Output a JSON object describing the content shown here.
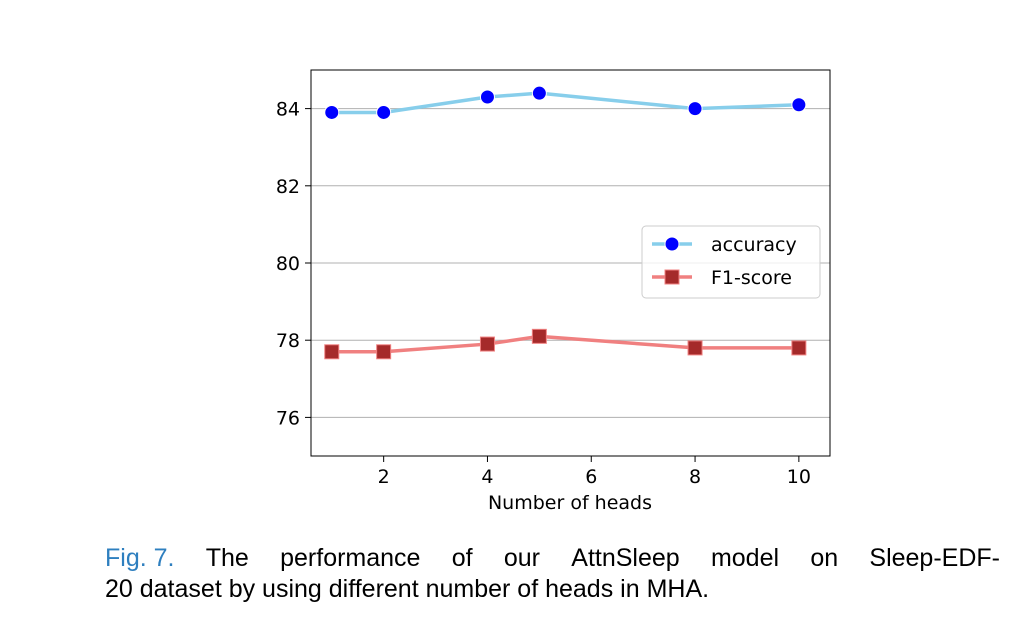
{
  "chart_data": {
    "type": "line",
    "title": "",
    "xlabel": "Number of heads",
    "ylabel": "",
    "xlim": [
      0.6,
      10.6
    ],
    "ylim": [
      75.0,
      85.0
    ],
    "xticks": [
      2,
      4,
      6,
      8,
      10
    ],
    "yticks": [
      76,
      78,
      80,
      82,
      84
    ],
    "grid": "horizontal",
    "legend_position": "center-right",
    "series": [
      {
        "name": "accuracy",
        "x": [
          1,
          2,
          4,
          5,
          8,
          10
        ],
        "y": [
          83.9,
          83.9,
          84.3,
          84.4,
          84.0,
          84.1
        ],
        "line_color": "#87ceeb",
        "marker_color": "#0000ff",
        "marker": "circle"
      },
      {
        "name": "F1-score",
        "x": [
          1,
          2,
          4,
          5,
          8,
          10
        ],
        "y": [
          77.7,
          77.7,
          77.9,
          78.1,
          77.8,
          77.8
        ],
        "line_color": "#f08080",
        "marker_color": "#a52a2a",
        "marker": "square"
      }
    ]
  },
  "caption": {
    "label": "Fig. 7.",
    "words": [
      "The",
      "performance",
      "of",
      "our",
      "AttnSleep",
      "model",
      "on",
      "Sleep-EDF-"
    ],
    "line2": "20 dataset by using different number of heads in MHA."
  }
}
